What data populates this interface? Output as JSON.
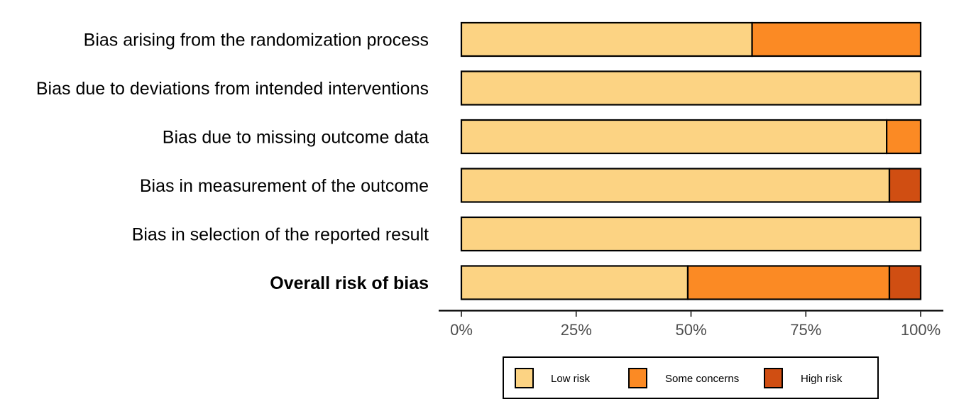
{
  "chart_data": {
    "type": "bar",
    "orientation": "horizontal",
    "stacked": true,
    "categories": [
      "Bias arising from the randomization process",
      "Bias due to deviations from intended interventions",
      "Bias due to missing outcome data",
      "Bias in measurement of the outcome",
      "Bias in selection of the reported result",
      "Overall risk of bias"
    ],
    "bold_categories": [
      "Overall risk of bias"
    ],
    "series": [
      {
        "name": "Low risk",
        "color": "#FCD383",
        "values": [
          63.3,
          100,
          92.6,
          93.2,
          100,
          49.3
        ]
      },
      {
        "name": "Some concerns",
        "color": "#FB8A24",
        "values": [
          36.7,
          0,
          7.4,
          0,
          0,
          43.9
        ]
      },
      {
        "name": "High risk",
        "color": "#D04E12",
        "values": [
          0,
          0,
          0,
          6.8,
          0,
          6.8
        ]
      }
    ],
    "xlim": [
      0,
      100
    ],
    "xticks": [
      "0%",
      "25%",
      "50%",
      "75%",
      "100%"
    ],
    "xlabel": "",
    "ylabel": "",
    "title": "",
    "grid": false,
    "legend_position": "bottom"
  }
}
